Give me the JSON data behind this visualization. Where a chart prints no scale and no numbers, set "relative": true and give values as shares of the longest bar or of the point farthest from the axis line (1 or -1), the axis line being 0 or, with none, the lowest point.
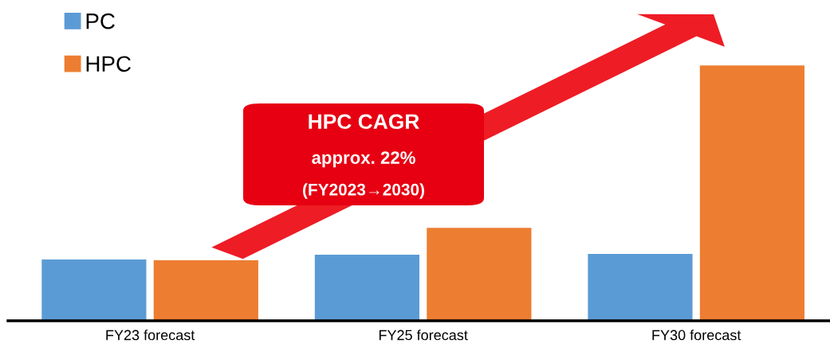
{
  "chart_data": {
    "type": "bar",
    "relative": true,
    "categories": [
      "FY23 forecast",
      "FY25 forecast",
      "FY30 forecast"
    ],
    "series": [
      {
        "name": "PC",
        "color": "#5b9bd5",
        "values": [
          0.24,
          0.259,
          0.262
        ]
      },
      {
        "name": "HPC",
        "color": "#ed7d31",
        "values": [
          0.237,
          0.364,
          1
        ]
      }
    ],
    "legend": "top left",
    "grid": false,
    "annotations": [
      "HPC CAGR",
      "approx. 22%",
      "(FY2023→2030)"
    ]
  }
}
